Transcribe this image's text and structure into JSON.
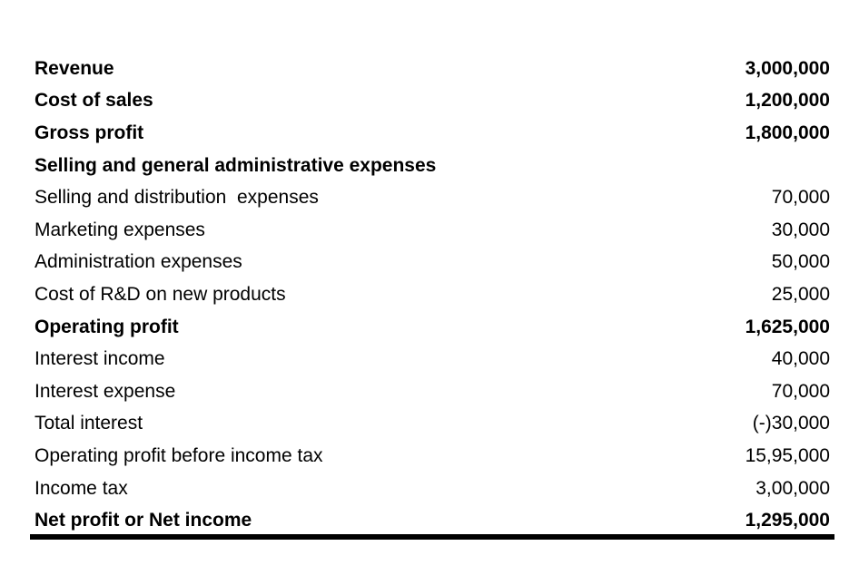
{
  "statement": {
    "rows": [
      {
        "label": "Revenue",
        "value": "3,000,000",
        "bold": true
      },
      {
        "label": "Cost of sales",
        "value": "1,200,000",
        "bold": true
      },
      {
        "label": "Gross profit",
        "value": "1,800,000",
        "bold": true
      },
      {
        "label": "Selling and general administrative expenses",
        "value": "",
        "bold": true
      },
      {
        "label": "Selling and distribution  expenses",
        "value": "70,000",
        "bold": false
      },
      {
        "label": "Marketing expenses",
        "value": "30,000",
        "bold": false
      },
      {
        "label": "Administration expenses",
        "value": "50,000",
        "bold": false
      },
      {
        "label": "Cost of R&D on new products",
        "value": "25,000",
        "bold": false
      },
      {
        "label": "Operating profit",
        "value": "1,625,000",
        "bold": true
      },
      {
        "label": "Interest income",
        "value": "40,000",
        "bold": false
      },
      {
        "label": "Interest expense",
        "value": "70,000",
        "bold": false
      },
      {
        "label": "Total interest",
        "value": "(-)30,000",
        "bold": false
      },
      {
        "label": "Operating profit before income tax",
        "value": "15,95,000",
        "bold": false
      },
      {
        "label": "Income tax",
        "value": "3,00,000",
        "bold": false
      },
      {
        "label": "Net profit or Net income",
        "value": "1,295,000",
        "bold": true
      }
    ]
  }
}
